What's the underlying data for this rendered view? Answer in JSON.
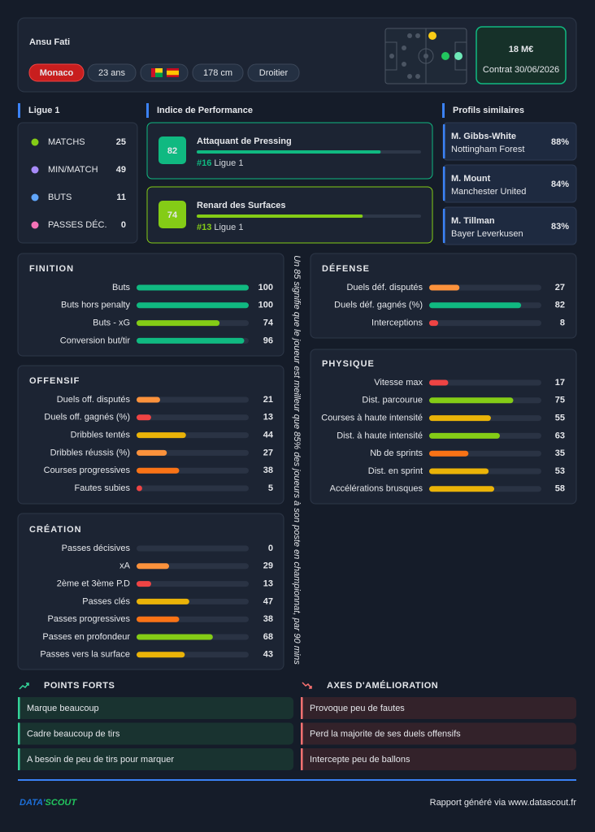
{
  "header": {
    "name": "Ansu Fati",
    "club": "Monaco",
    "age": "23 ans",
    "height": "178 cm",
    "foot": "Droitier",
    "market_value": "18 M€",
    "contract": "Contrat 30/06/2026"
  },
  "league": {
    "title": "Ligue 1",
    "stats": [
      {
        "label": "MATCHS",
        "value": 25
      },
      {
        "label": "MIN/MATCH",
        "value": 49
      },
      {
        "label": "BUTS",
        "value": 11
      },
      {
        "label": "PASSES DÉC.",
        "value": 0
      }
    ]
  },
  "performance": {
    "title": "Indice de Performance",
    "items": [
      {
        "score": 82,
        "name": "Attaquant de Pressing",
        "rank": "#16",
        "league": "Ligue 1"
      },
      {
        "score": 74,
        "name": "Renard des Surfaces",
        "rank": "#13",
        "league": "Ligue 1"
      }
    ]
  },
  "similar": {
    "title": "Profils similaires",
    "items": [
      {
        "name": "M. Gibbs-White",
        "club": "Nottingham Forest",
        "similarity": "88%"
      },
      {
        "name": "M. Mount",
        "club": "Manchester United",
        "similarity": "84%"
      },
      {
        "name": "M. Tillman",
        "club": "Bayer Leverkusen",
        "similarity": "83%"
      }
    ]
  },
  "sections": [
    {
      "title": "FINITION",
      "rows": [
        {
          "label": "Buts",
          "value": 100
        },
        {
          "label": "Buts hors penalty",
          "value": 100
        },
        {
          "label": "Buts - xG",
          "value": 74
        },
        {
          "label": "Conversion but/tir",
          "value": 96
        }
      ]
    },
    {
      "title": "OFFENSIF",
      "rows": [
        {
          "label": "Duels off. disputés",
          "value": 21
        },
        {
          "label": "Duels off. gagnés (%)",
          "value": 13
        },
        {
          "label": "Dribbles tentés",
          "value": 44
        },
        {
          "label": "Dribbles réussis (%)",
          "value": 27
        },
        {
          "label": "Courses progressives",
          "value": 38
        },
        {
          "label": "Fautes subies",
          "value": 5
        }
      ]
    },
    {
      "title": "CRÉATION",
      "rows": [
        {
          "label": "Passes décisives",
          "value": 0
        },
        {
          "label": "xA",
          "value": 29
        },
        {
          "label": "2ème et 3ème P.D",
          "value": 13
        },
        {
          "label": "Passes clés",
          "value": 47
        },
        {
          "label": "Passes progressives",
          "value": 38
        },
        {
          "label": "Passes en profondeur",
          "value": 68
        },
        {
          "label": "Passes vers la surface",
          "value": 43
        }
      ]
    },
    {
      "title": "DÉFENSE",
      "rows": [
        {
          "label": "Duels déf. disputés",
          "value": 27
        },
        {
          "label": "Duels déf. gagnés (%)",
          "value": 82
        },
        {
          "label": "Interceptions",
          "value": 8
        }
      ]
    },
    {
      "title": "PHYSIQUE",
      "rows": [
        {
          "label": "Vitesse max",
          "value": 17
        },
        {
          "label": "Dist. parcourue",
          "value": 75
        },
        {
          "label": "Courses à haute intensité",
          "value": 55
        },
        {
          "label": "Dist. à haute intensité",
          "value": 63
        },
        {
          "label": "Nb de sprints",
          "value": 35
        },
        {
          "label": "Dist. en sprint",
          "value": 53
        },
        {
          "label": "Accélérations brusques",
          "value": 58
        }
      ]
    }
  ],
  "note": "Un 85 signifie que le joueur est meilleur que 85% des joueurs à son poste en championnat, par 90 mins",
  "strengths": {
    "title": "POINTS FORTS",
    "items": [
      "Marque beaucoup",
      "Cadre beaucoup de tirs",
      "A besoin de peu de tirs pour marquer"
    ]
  },
  "improvements": {
    "title": "AXES D'AMÉLIORATION",
    "items": [
      "Provoque peu de fautes",
      "Perd la majorite de ses duels offensifs",
      "Intercepte peu de ballons"
    ]
  },
  "footer": {
    "logo_left": "DATA'",
    "logo_right": "SCOUT",
    "text": "Rapport généré via www.datascout.fr"
  }
}
